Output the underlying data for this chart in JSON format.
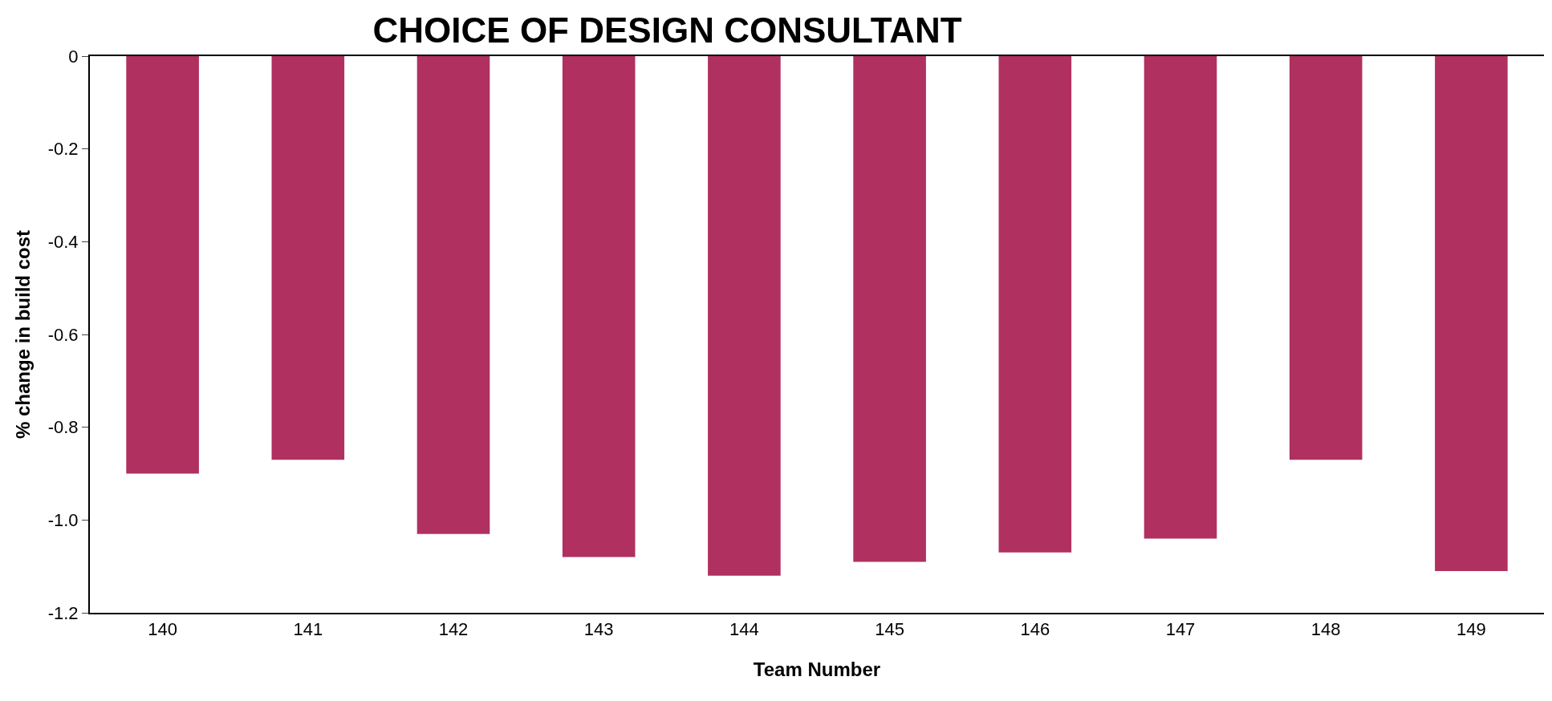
{
  "chart_data": {
    "type": "bar",
    "title": "CHOICE OF DESIGN CONSULTANT",
    "xlabel": "Team Number",
    "ylabel": "% change in build cost",
    "categories": [
      "140",
      "141",
      "142",
      "143",
      "144",
      "145",
      "146",
      "147",
      "148",
      "149"
    ],
    "values": [
      -0.9,
      -0.87,
      -1.03,
      -1.08,
      -1.12,
      -1.09,
      -1.07,
      -1.04,
      -0.87,
      -1.11
    ],
    "color": "#b03060",
    "ylim": [
      -1.2,
      0
    ],
    "yticks": [
      {
        "value": -1.2,
        "label": "-1.2"
      },
      {
        "value": -1.0,
        "label": "-1.0"
      },
      -0.8,
      -0.6,
      -0.4,
      -0.2,
      0
    ]
  }
}
